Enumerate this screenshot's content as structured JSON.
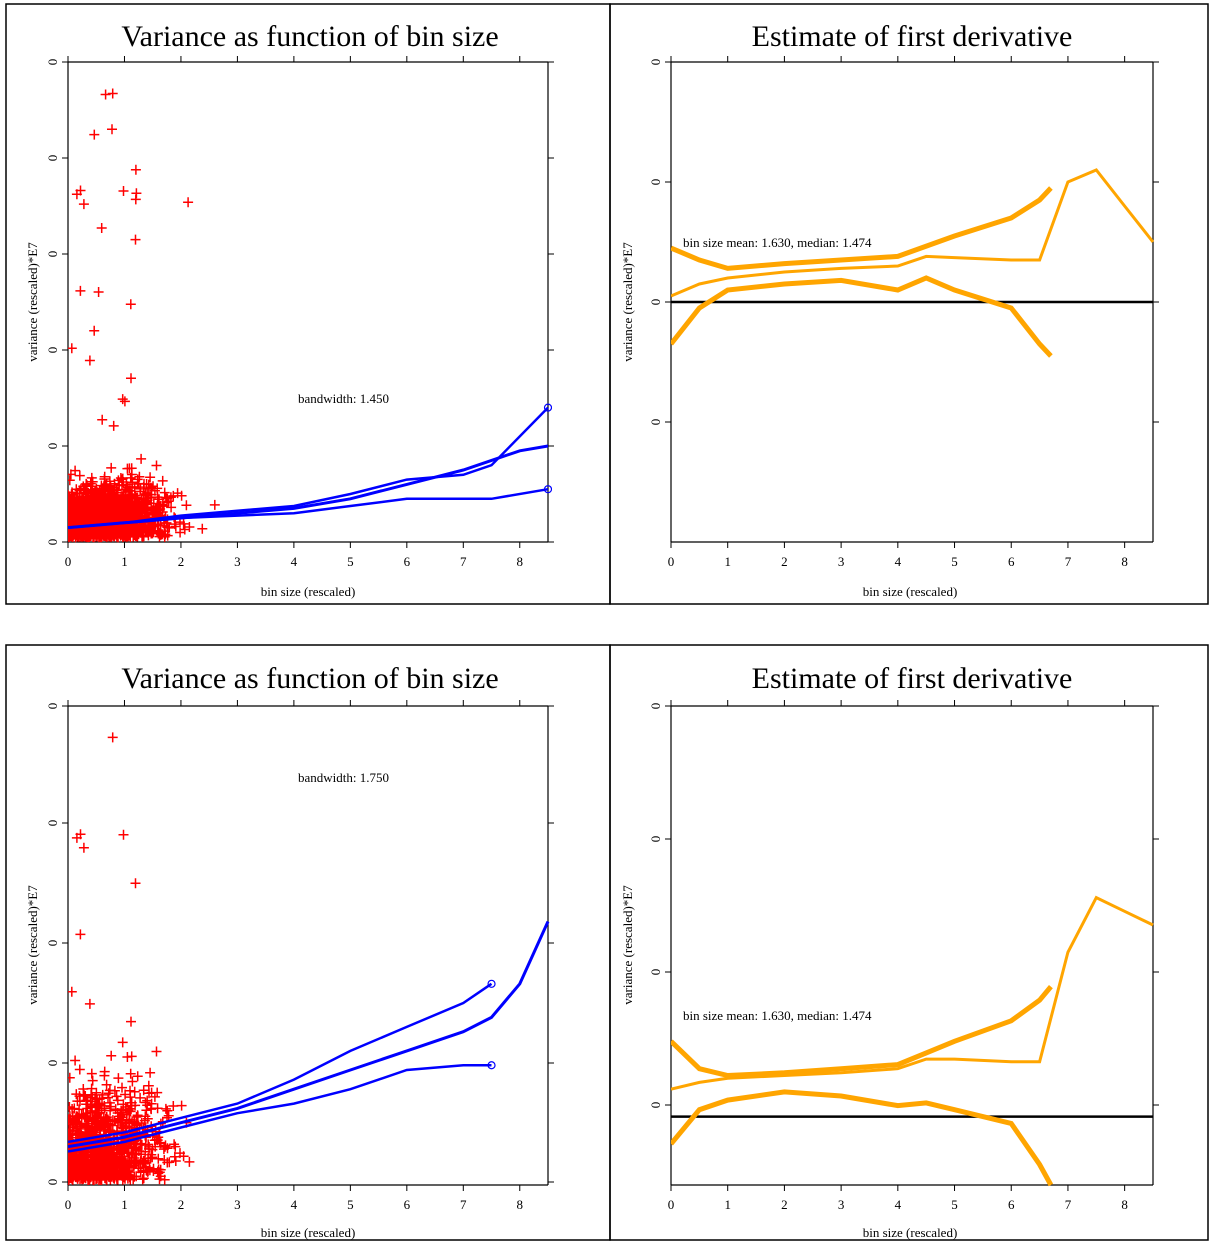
{
  "chart_data": [
    {
      "type": "scatter",
      "title": "Variance as function of bin size",
      "xlabel": "bin size (rescaled)",
      "ylabel": "variance (rescaled)*E7",
      "xticks": [
        "0",
        "1",
        "2",
        "3",
        "4",
        "5",
        "6",
        "7",
        "8"
      ],
      "yticks": [
        "0",
        "0",
        "0",
        "0",
        "0",
        "0"
      ],
      "xlim": [
        0,
        8.5
      ],
      "ylim": [
        0,
        1
      ],
      "annotation": "bandwidth: 1.450",
      "grid": false,
      "colors": {
        "points": "#ff0000",
        "smooth": "#0000ff"
      },
      "series": [
        {
          "kind": "points-red-plus",
          "summary": "dense scatter of variance estimates",
          "count_estimate": 6000,
          "x_range": [
            0,
            8.5
          ],
          "y_range": [
            0,
            1
          ]
        },
        {
          "kind": "smooth-mean",
          "x": [
            0,
            1,
            2,
            3,
            4,
            5,
            6,
            7,
            7.5,
            8,
            8.5
          ],
          "y": [
            0.03,
            0.04,
            0.05,
            0.06,
            0.07,
            0.09,
            0.12,
            0.15,
            0.17,
            0.19,
            0.2
          ]
        },
        {
          "kind": "band-upper",
          "x": [
            0,
            1,
            2,
            3,
            4,
            5,
            6,
            7,
            7.5,
            8.5
          ],
          "y": [
            0.03,
            0.04,
            0.055,
            0.065,
            0.075,
            0.1,
            0.13,
            0.14,
            0.16,
            0.28
          ]
        },
        {
          "kind": "band-lower",
          "x": [
            0,
            1,
            2,
            3,
            4,
            5,
            6,
            7,
            7.5,
            8.5
          ],
          "y": [
            0.03,
            0.04,
            0.05,
            0.055,
            0.06,
            0.075,
            0.09,
            0.09,
            0.09,
            0.11
          ]
        }
      ]
    },
    {
      "type": "line",
      "title": "Estimate of first derivative",
      "xlabel": "bin size (rescaled)",
      "ylabel": "variance (rescaled)*E7",
      "xticks": [
        "0",
        "1",
        "2",
        "3",
        "4",
        "5",
        "6",
        "7",
        "8"
      ],
      "yticks": [
        "0",
        "0",
        "0",
        "0"
      ],
      "xlim": [
        0,
        8.5
      ],
      "ylim": [
        -2,
        2
      ],
      "annotation": "bin size mean: 1.630, median: 1.474",
      "grid": false,
      "colors": {
        "curve": "#ffa500",
        "zero_line": "#000000"
      },
      "series": [
        {
          "kind": "derivative",
          "x": [
            0,
            0.5,
            1,
            2,
            3,
            4,
            4.5,
            5,
            6,
            6.5,
            7,
            7.5,
            8,
            8.5
          ],
          "y": [
            0.05,
            0.15,
            0.2,
            0.25,
            0.28,
            0.3,
            0.38,
            0.37,
            0.35,
            0.35,
            1.0,
            1.1,
            0.8,
            0.5
          ]
        },
        {
          "kind": "band-upper",
          "x": [
            0,
            0.5,
            1,
            2,
            3,
            4,
            5,
            6,
            6.5,
            6.7
          ],
          "y": [
            0.45,
            0.35,
            0.28,
            0.32,
            0.35,
            0.38,
            0.55,
            0.7,
            0.85,
            0.95
          ]
        },
        {
          "kind": "band-lower",
          "x": [
            0,
            0.5,
            1,
            2,
            3,
            4,
            4.5,
            5,
            6,
            6.5,
            6.7
          ],
          "y": [
            -0.35,
            -0.05,
            0.1,
            0.15,
            0.18,
            0.1,
            0.2,
            0.1,
            -0.05,
            -0.35,
            -0.45
          ]
        }
      ]
    },
    {
      "type": "scatter",
      "title": "Variance as function of bin size",
      "xlabel": "bin size (rescaled)",
      "ylabel": "variance (rescaled)*E7",
      "xticks": [
        "0",
        "1",
        "2",
        "3",
        "4",
        "5",
        "6",
        "7",
        "8"
      ],
      "yticks": [
        "0",
        "0",
        "0",
        "0",
        "0"
      ],
      "xlim": [
        0,
        8.5
      ],
      "ylim": [
        0,
        1
      ],
      "annotation": "bandwidth: 1.750",
      "grid": false,
      "colors": {
        "points": "#ff0000",
        "smooth": "#0000ff"
      },
      "series": [
        {
          "kind": "points-red-plus",
          "summary": "dense scatter of variance estimates",
          "count_estimate": 8000,
          "x_range": [
            0,
            8.5
          ],
          "y_range": [
            0,
            1
          ]
        },
        {
          "kind": "smooth-mean",
          "x": [
            0,
            1,
            2,
            3,
            4,
            5,
            6,
            7,
            7.5,
            8,
            8.5
          ],
          "y": [
            0.08,
            0.1,
            0.13,
            0.16,
            0.2,
            0.24,
            0.28,
            0.32,
            0.35,
            0.42,
            0.55
          ]
        },
        {
          "kind": "band-upper",
          "x": [
            0,
            1,
            2,
            3,
            4,
            5,
            6,
            7,
            7.5
          ],
          "y": [
            0.09,
            0.11,
            0.14,
            0.17,
            0.22,
            0.28,
            0.33,
            0.38,
            0.42
          ]
        },
        {
          "kind": "band-lower",
          "x": [
            0,
            1,
            2,
            3,
            4,
            5,
            6,
            7,
            7.5
          ],
          "y": [
            0.07,
            0.09,
            0.12,
            0.15,
            0.17,
            0.2,
            0.24,
            0.25,
            0.25
          ]
        }
      ]
    },
    {
      "type": "line",
      "title": "Estimate of first derivative",
      "xlabel": "bin size (rescaled)",
      "ylabel": "variance (rescaled)*E7",
      "xticks": [
        "0",
        "1",
        "2",
        "3",
        "4",
        "5",
        "6",
        "7",
        "8"
      ],
      "yticks": [
        "0",
        "0",
        "0",
        "0"
      ],
      "xlim": [
        0,
        8.5
      ],
      "ylim": [
        -0.5,
        3
      ],
      "annotation": "bin size mean: 1.630, median: 1.474",
      "grid": false,
      "colors": {
        "curve": "#ffa500",
        "zero_line": "#000000"
      },
      "series": [
        {
          "kind": "derivative",
          "x": [
            0,
            0.5,
            1,
            2,
            3,
            4,
            4.5,
            5,
            6,
            6.5,
            7,
            7.5,
            8,
            8.5
          ],
          "y": [
            0.2,
            0.25,
            0.28,
            0.3,
            0.32,
            0.35,
            0.42,
            0.42,
            0.4,
            0.4,
            1.2,
            1.6,
            1.5,
            1.4
          ]
        },
        {
          "kind": "band-upper",
          "x": [
            0,
            0.5,
            1,
            2,
            3,
            4,
            5,
            6,
            6.5,
            6.7
          ],
          "y": [
            0.55,
            0.35,
            0.3,
            0.32,
            0.35,
            0.38,
            0.55,
            0.7,
            0.85,
            0.95
          ]
        },
        {
          "kind": "band-lower",
          "x": [
            0,
            0.5,
            1,
            2,
            3,
            4,
            4.5,
            5,
            6,
            6.5,
            6.7
          ],
          "y": [
            -0.2,
            0.05,
            0.12,
            0.18,
            0.15,
            0.08,
            0.1,
            0.05,
            -0.05,
            -0.35,
            -0.5
          ]
        }
      ]
    }
  ]
}
